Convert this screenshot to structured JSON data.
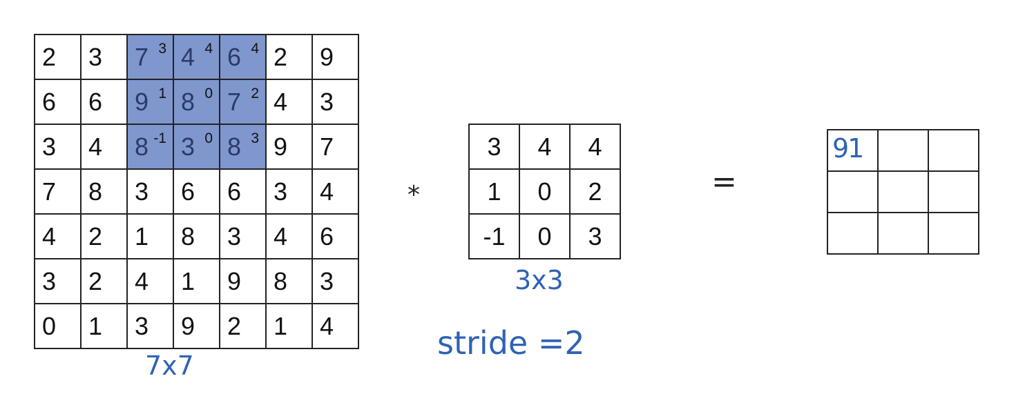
{
  "input_matrix": {
    "label": "7x7",
    "rows": [
      [
        2,
        3,
        7,
        4,
        6,
        2,
        9
      ],
      [
        6,
        6,
        9,
        8,
        7,
        4,
        3
      ],
      [
        3,
        4,
        8,
        3,
        8,
        9,
        7
      ],
      [
        7,
        8,
        3,
        6,
        6,
        3,
        4
      ],
      [
        4,
        2,
        1,
        8,
        3,
        4,
        6
      ],
      [
        3,
        2,
        4,
        1,
        9,
        8,
        3
      ],
      [
        0,
        1,
        3,
        9,
        2,
        1,
        4
      ]
    ],
    "highlight": {
      "row_start": 0,
      "col_start": 2,
      "size": 3
    },
    "highlight_color": "#7f97cd",
    "overlay_weights": [
      [
        "3",
        "4",
        "4"
      ],
      [
        "1",
        "0",
        "2"
      ],
      [
        "-1",
        "0",
        "3"
      ]
    ]
  },
  "filter_matrix": {
    "label": "3x3",
    "rows": [
      [
        "3",
        "4",
        "4"
      ],
      [
        "1",
        "0",
        "2"
      ],
      [
        "-1",
        "0",
        "3"
      ]
    ]
  },
  "output_matrix": {
    "rows": [
      [
        "91",
        "",
        ""
      ],
      [
        "",
        "",
        ""
      ],
      [
        "",
        "",
        ""
      ]
    ]
  },
  "operators": {
    "convolve": "*",
    "equals": "="
  },
  "annotations": {
    "stride": "stride =2"
  },
  "ink_color": "#2f63b3"
}
